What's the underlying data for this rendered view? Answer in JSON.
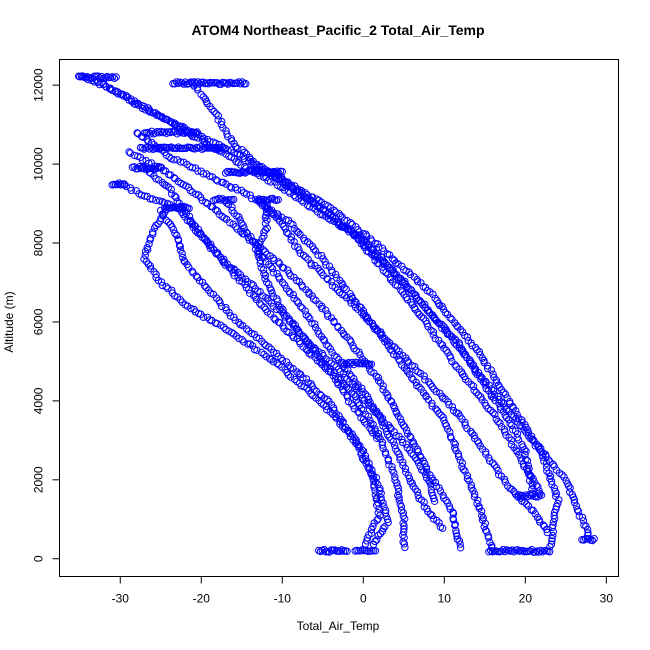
{
  "chart_data": {
    "type": "scatter",
    "title": "ATOM4 Northeast_Pacific_2 Total_Air_Temp",
    "xlabel": "Total_Air_Temp",
    "ylabel": "Altitude (m)",
    "xlim": [
      -37.5,
      31.5
    ],
    "ylim": [
      -450,
      12650
    ],
    "xticks": [
      -30,
      -20,
      -10,
      0,
      10,
      20,
      30
    ],
    "yticks": [
      0,
      2000,
      4000,
      6000,
      8000,
      10000,
      12000
    ],
    "xtick_labels": [
      "-30",
      "-20",
      "-10",
      "0",
      "10",
      "20",
      "30"
    ],
    "ytick_labels": [
      "0",
      "2000",
      "4000",
      "6000",
      "8000",
      "10000",
      "12000"
    ],
    "grid": false,
    "marker": "open-circle",
    "color": "#0000ff",
    "profiles": [
      [
        [
          -35,
          12250
        ],
        [
          -30,
          11800
        ],
        [
          -25,
          11200
        ],
        [
          -20,
          10600
        ],
        [
          -15,
          10000
        ],
        [
          -10,
          9400
        ],
        [
          -5,
          8700
        ],
        [
          0,
          8100
        ],
        [
          5,
          7000
        ],
        [
          10,
          5800
        ],
        [
          15,
          4500
        ],
        [
          20,
          3200
        ],
        [
          25,
          2000
        ],
        [
          28,
          500
        ]
      ],
      [
        [
          -33,
          12150
        ],
        [
          -28,
          11500
        ],
        [
          -22,
          10900
        ],
        [
          -16,
          10300
        ],
        [
          -10,
          9600
        ],
        [
          -4,
          8900
        ],
        [
          2,
          7900
        ],
        [
          8,
          6800
        ],
        [
          14,
          5300
        ],
        [
          18,
          4000
        ],
        [
          22,
          2700
        ],
        [
          24,
          1500
        ],
        [
          23,
          200
        ]
      ],
      [
        [
          -21,
          12050
        ],
        [
          -18,
          11200
        ],
        [
          -16,
          10500
        ],
        [
          -12,
          9800
        ],
        [
          -6,
          9000
        ],
        [
          -1,
          8200
        ],
        [
          3,
          7200
        ],
        [
          7,
          6200
        ],
        [
          11,
          5000
        ],
        [
          16,
          3700
        ],
        [
          19,
          2700
        ],
        [
          22,
          1600
        ]
      ],
      [
        [
          -28,
          10800
        ],
        [
          -24,
          10200
        ],
        [
          -19,
          9700
        ],
        [
          -14,
          9200
        ],
        [
          -9,
          8500
        ],
        [
          -5,
          7600
        ],
        [
          -2,
          6800
        ],
        [
          2,
          5700
        ],
        [
          6,
          4600
        ],
        [
          10,
          3500
        ],
        [
          12,
          2500
        ],
        [
          14,
          1500
        ],
        [
          16,
          200
        ]
      ],
      [
        [
          -29,
          10300
        ],
        [
          -25,
          9900
        ],
        [
          -21,
          9300
        ],
        [
          -18,
          8800
        ],
        [
          -14,
          8100
        ],
        [
          -10,
          7400
        ],
        [
          -6,
          6600
        ],
        [
          -2,
          5600
        ],
        [
          2,
          4500
        ],
        [
          5,
          3400
        ],
        [
          8,
          2200
        ],
        [
          11,
          1200
        ],
        [
          12,
          200
        ]
      ],
      [
        [
          -27,
          9900
        ],
        [
          -24,
          9400
        ],
        [
          -22,
          8800
        ],
        [
          -20,
          8200
        ],
        [
          -17,
          7500
        ],
        [
          -13,
          6800
        ],
        [
          -9,
          6000
        ],
        [
          -5,
          5000
        ],
        [
          -1,
          4100
        ],
        [
          2,
          3100
        ],
        [
          4,
          2000
        ],
        [
          5,
          1000
        ],
        [
          5,
          200
        ]
      ],
      [
        [
          -24,
          8900
        ],
        [
          -26,
          8300
        ],
        [
          -27,
          7600
        ],
        [
          -25,
          7000
        ],
        [
          -21,
          6300
        ],
        [
          -16,
          5700
        ],
        [
          -11,
          5000
        ],
        [
          -7,
          4300
        ],
        [
          -3,
          3500
        ],
        [
          0,
          2700
        ],
        [
          2,
          1800
        ],
        [
          3,
          900
        ],
        [
          1,
          300
        ]
      ],
      [
        [
          -25,
          8800
        ],
        [
          -23,
          8200
        ],
        [
          -22,
          7500
        ],
        [
          -19,
          6800
        ],
        [
          -16,
          6100
        ],
        [
          -12,
          5400
        ],
        [
          -8,
          4700
        ],
        [
          -4,
          3900
        ],
        [
          -1,
          3000
        ],
        [
          1,
          2100
        ],
        [
          2,
          1100
        ],
        [
          0,
          300
        ]
      ],
      [
        [
          -13,
          9100
        ],
        [
          -10,
          8500
        ],
        [
          -8,
          7800
        ],
        [
          -4,
          7000
        ],
        [
          0,
          6200
        ],
        [
          4,
          5300
        ],
        [
          8,
          4500
        ],
        [
          12,
          3600
        ],
        [
          15,
          2700
        ],
        [
          18,
          1800
        ],
        [
          21,
          1200
        ],
        [
          23,
          600
        ]
      ],
      [
        [
          -11,
          9800
        ],
        [
          -8,
          9300
        ],
        [
          -4,
          8700
        ],
        [
          0,
          8000
        ],
        [
          4,
          7200
        ],
        [
          8,
          6300
        ],
        [
          12,
          5400
        ],
        [
          15,
          4400
        ],
        [
          18,
          3500
        ],
        [
          20,
          2700
        ],
        [
          21,
          1600
        ]
      ],
      [
        [
          -30,
          9500
        ],
        [
          -27,
          9200
        ],
        [
          -23,
          8900
        ],
        [
          -21,
          8400
        ],
        [
          -18,
          7700
        ],
        [
          -15,
          7000
        ],
        [
          -12,
          6300
        ],
        [
          -8,
          5500
        ],
        [
          -4,
          4700
        ],
        [
          -1,
          3800
        ],
        [
          2,
          3000
        ]
      ],
      [
        [
          -17,
          9100
        ],
        [
          -15,
          8500
        ],
        [
          -13,
          7800
        ],
        [
          -10,
          7000
        ],
        [
          -7,
          6200
        ],
        [
          -4,
          5300
        ],
        [
          -1,
          4500
        ],
        [
          2,
          3600
        ],
        [
          4,
          2800
        ],
        [
          6,
          1900
        ],
        [
          8,
          1200
        ],
        [
          10,
          700
        ]
      ],
      [
        [
          -12,
          9100
        ],
        [
          -12,
          8400
        ],
        [
          -13,
          7800
        ],
        [
          -12,
          7000
        ],
        [
          -10,
          6300
        ],
        [
          -7,
          5500
        ],
        [
          -3,
          4800
        ],
        [
          0,
          4100
        ],
        [
          3,
          3400
        ],
        [
          6,
          2700
        ],
        [
          8,
          2000
        ],
        [
          9,
          1400
        ]
      ]
    ],
    "level_legs": [
      {
        "x_start": -35,
        "x_end": -30.5,
        "altitude": 12200
      },
      {
        "x_start": -23.5,
        "x_end": -14.5,
        "altitude": 12050
      },
      {
        "x_start": -27,
        "x_end": -20.5,
        "altitude": 10800
      },
      {
        "x_start": -27.5,
        "x_end": -17,
        "altitude": 10400
      },
      {
        "x_start": -17,
        "x_end": -10,
        "altitude": 9800
      },
      {
        "x_start": -28.5,
        "x_end": -25,
        "altitude": 9900
      },
      {
        "x_start": -31,
        "x_end": -29.5,
        "altitude": 9500
      },
      {
        "x_start": -24.5,
        "x_end": -21.5,
        "altitude": 8900
      },
      {
        "x_start": -18.5,
        "x_end": -16,
        "altitude": 9100
      },
      {
        "x_start": -13,
        "x_end": -10.5,
        "altitude": 9100
      },
      {
        "x_start": -2.5,
        "x_end": 1,
        "altitude": 4950
      },
      {
        "x_start": 19,
        "x_end": 22,
        "altitude": 1600
      },
      {
        "x_start": 27,
        "x_end": 28.5,
        "altitude": 480
      },
      {
        "x_start": 15.5,
        "x_end": 23,
        "altitude": 200
      },
      {
        "x_start": -5.5,
        "x_end": -2,
        "altitude": 200
      },
      {
        "x_start": -1,
        "x_end": 1.5,
        "altitude": 200
      }
    ]
  }
}
